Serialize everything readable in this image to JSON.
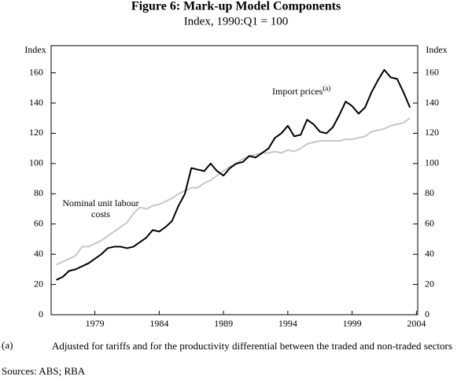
{
  "chart_data": {
    "type": "line",
    "title": "Figure 6: Mark-up Model Components",
    "subtitle": "Index, 1990:Q1 = 100",
    "ylabel": "Index",
    "y2label": "Index",
    "x": [
      1976.0,
      1976.5,
      1977.0,
      1977.5,
      1978.0,
      1978.5,
      1979.0,
      1979.5,
      1980.0,
      1980.5,
      1981.0,
      1981.5,
      1982.0,
      1982.5,
      1983.0,
      1983.5,
      1984.0,
      1984.5,
      1985.0,
      1985.5,
      1986.0,
      1986.5,
      1987.0,
      1987.5,
      1988.0,
      1988.5,
      1989.0,
      1989.5,
      1990.0,
      1990.5,
      1991.0,
      1991.5,
      1992.0,
      1992.5,
      1993.0,
      1993.5,
      1994.0,
      1994.5,
      1995.0,
      1995.5,
      1996.0,
      1996.5,
      1997.0,
      1997.5,
      1998.0,
      1998.5,
      1999.0,
      1999.5,
      2000.0,
      2000.5,
      2001.0,
      2001.5,
      2002.0,
      2002.5,
      2003.0,
      2003.5
    ],
    "series": [
      {
        "name": "Import prices",
        "name_marker": "(a)",
        "color": "#000000",
        "values": [
          23,
          25,
          29,
          30,
          32,
          34,
          37,
          40,
          44,
          45,
          45,
          44,
          45,
          48,
          51,
          56,
          55,
          58,
          62,
          72,
          80,
          97,
          96,
          95,
          100,
          95,
          92,
          97,
          100,
          101,
          105,
          104,
          107,
          110,
          117,
          120,
          125,
          118,
          119,
          129,
          126,
          121,
          120,
          124,
          132,
          141,
          138,
          133,
          137,
          147,
          155,
          162,
          157,
          156,
          147,
          137
        ]
      },
      {
        "name": "Nominal unit labour costs",
        "color": "#c8c8c8",
        "values": [
          33,
          35,
          37,
          39,
          45,
          45,
          47,
          49,
          52,
          55,
          58,
          61,
          67,
          71,
          70,
          72,
          73,
          75,
          77,
          80,
          82,
          84,
          84,
          87,
          89,
          92,
          95,
          98,
          100,
          103,
          105,
          106,
          107,
          107,
          108,
          107,
          109,
          108,
          110,
          113,
          114,
          115,
          115,
          115,
          115,
          116,
          116,
          117,
          118,
          121,
          122,
          123,
          125,
          126,
          127,
          130
        ]
      }
    ],
    "xlim": [
      1975.6,
      2004.1
    ],
    "xticks": [
      1979,
      1984,
      1989,
      1994,
      1999,
      2004
    ],
    "ylim": [
      0,
      178
    ],
    "yticks": [
      0,
      20,
      40,
      60,
      80,
      100,
      120,
      140,
      160
    ],
    "y2lim": [
      0,
      178
    ],
    "y2ticks": [
      0,
      20,
      40,
      60,
      80,
      100,
      120,
      140,
      160
    ],
    "footnote": {
      "marker": "(a)",
      "text": "Adjusted for tariffs and for the productivity differential between the traded and non-traded sectors"
    },
    "sources": "Sources: ABS; RBA"
  }
}
